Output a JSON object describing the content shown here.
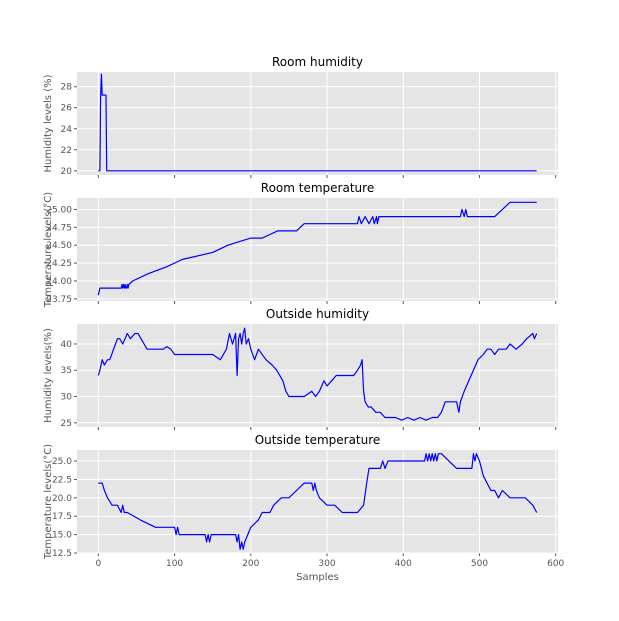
{
  "figure": {
    "xlabel": "Samples"
  },
  "colors": {
    "line": "#0000ff",
    "panel": "#e5e5e5",
    "grid": "#ffffff"
  },
  "chart_data": [
    {
      "type": "line",
      "title": "Room humidity",
      "ylabel": "Humidity levels (%)",
      "xlim": [
        -28,
        603
      ],
      "ylim": [
        19.6,
        29.4
      ],
      "yticks": [
        20,
        22,
        24,
        26,
        28
      ],
      "ytick_labels": [
        "20",
        "22",
        "24",
        "26",
        "28"
      ],
      "series": [
        {
          "x": [
            0,
            2,
            3,
            4,
            5,
            8,
            10,
            11,
            12,
            100,
            200,
            300,
            400,
            500,
            575
          ],
          "y": [
            20,
            20,
            27,
            29.2,
            27.2,
            27.2,
            27.2,
            20,
            20,
            20,
            20,
            20,
            20,
            20,
            20
          ]
        }
      ]
    },
    {
      "type": "line",
      "title": "Room temperature",
      "ylabel": "Temperature levels(°C)",
      "xlim": [
        -28,
        603
      ],
      "ylim": [
        23.72,
        25.16
      ],
      "yticks": [
        23.75,
        24.0,
        24.25,
        24.5,
        24.75,
        25.0
      ],
      "ytick_labels": [
        "23.75",
        "24.00",
        "24.25",
        "24.50",
        "24.75",
        "25.00"
      ],
      "series": [
        {
          "x": [
            0,
            2,
            30,
            31,
            32,
            33,
            34,
            35,
            36,
            37,
            38,
            39,
            40,
            45,
            65,
            90,
            110,
            150,
            170,
            200,
            215,
            225,
            235,
            260,
            270,
            300,
            340,
            342,
            345,
            350,
            355,
            360,
            362,
            365,
            366,
            368,
            370,
            400,
            445,
            475,
            477,
            480,
            482,
            484,
            490,
            520,
            530,
            540,
            575
          ],
          "y": [
            23.8,
            23.9,
            23.9,
            23.95,
            23.9,
            23.95,
            23.9,
            23.95,
            23.9,
            23.9,
            23.95,
            23.9,
            23.95,
            24.0,
            24.1,
            24.2,
            24.3,
            24.4,
            24.5,
            24.6,
            24.6,
            24.65,
            24.7,
            24.7,
            24.8,
            24.8,
            24.8,
            24.9,
            24.8,
            24.9,
            24.8,
            24.9,
            24.8,
            24.9,
            24.8,
            24.9,
            24.9,
            24.9,
            24.9,
            24.9,
            25.0,
            24.9,
            25.0,
            24.9,
            24.9,
            24.9,
            25.0,
            25.1,
            25.1
          ]
        }
      ]
    },
    {
      "type": "line",
      "title": "Outside humidity",
      "ylabel": "Humidity levels(%)",
      "xlim": [
        -28,
        603
      ],
      "ylim": [
        24.2,
        43.8
      ],
      "yticks": [
        25,
        30,
        35,
        40
      ],
      "ytick_labels": [
        "25",
        "30",
        "35",
        "40"
      ],
      "series": [
        {
          "x": [
            0,
            2,
            5,
            8,
            12,
            15,
            20,
            25,
            28,
            32,
            38,
            42,
            48,
            52,
            56,
            60,
            64,
            68,
            72,
            80,
            85,
            90,
            95,
            100,
            110,
            120,
            130,
            140,
            150,
            160,
            168,
            172,
            176,
            180,
            182,
            184,
            186,
            188,
            190,
            192,
            194,
            197,
            200,
            205,
            210,
            220,
            228,
            234,
            238,
            242,
            246,
            250,
            256,
            262,
            270,
            280,
            285,
            290,
            296,
            300,
            306,
            312,
            318,
            326,
            335,
            340,
            344,
            346,
            348,
            350,
            354,
            358,
            364,
            370,
            376,
            382,
            390,
            398,
            406,
            414,
            422,
            430,
            438,
            445,
            450,
            455,
            470,
            473,
            475,
            480,
            486,
            492,
            498,
            505,
            510,
            515,
            520,
            525,
            530,
            535,
            540,
            548,
            556,
            562,
            570,
            572,
            575
          ],
          "y": [
            34,
            35,
            37,
            36,
            37,
            37,
            39,
            41,
            41,
            40,
            42,
            41,
            42,
            42,
            41,
            40,
            39,
            39,
            39,
            39,
            39,
            39.5,
            39,
            38,
            38,
            38,
            38,
            38,
            38,
            37,
            39,
            42,
            40,
            42,
            34,
            41,
            42,
            40,
            42,
            43,
            40,
            41,
            39,
            37,
            39,
            37,
            36,
            35,
            34,
            33,
            31,
            30,
            30,
            30,
            30,
            31,
            30,
            31,
            33,
            32,
            33,
            34,
            34,
            34,
            34,
            35,
            36,
            37,
            31,
            29,
            28,
            28,
            27,
            27,
            26,
            26,
            26,
            25.5,
            26,
            25.5,
            26,
            25.5,
            26,
            26,
            27,
            29,
            29,
            27,
            29,
            31,
            33,
            35,
            37,
            38,
            39,
            39,
            38,
            39,
            39,
            39,
            40,
            39,
            40,
            41,
            42,
            41,
            42
          ]
        }
      ]
    },
    {
      "type": "line",
      "title": "Outside temperature",
      "ylabel": "Temperature levels(°C)",
      "xlim": [
        -28,
        603
      ],
      "ylim": [
        12.5,
        26.5
      ],
      "yticks": [
        12.5,
        15.0,
        17.5,
        20.0,
        22.5,
        25.0
      ],
      "ytick_labels": [
        "12.5",
        "15.0",
        "17.5",
        "20.0",
        "22.5",
        "25.0"
      ],
      "series": [
        {
          "x": [
            0,
            5,
            8,
            12,
            18,
            25,
            30,
            32,
            34,
            38,
            55,
            75,
            100,
            102,
            104,
            106,
            108,
            140,
            142,
            144,
            146,
            148,
            150,
            180,
            182,
            184,
            186,
            188,
            190,
            192,
            196,
            200,
            210,
            215,
            225,
            230,
            240,
            250,
            260,
            270,
            280,
            282,
            284,
            286,
            290,
            300,
            310,
            320,
            340,
            348,
            352,
            355,
            360,
            370,
            373,
            376,
            380,
            390,
            400,
            420,
            428,
            430,
            432,
            434,
            436,
            438,
            440,
            442,
            444,
            446,
            448,
            450,
            470,
            490,
            492,
            494,
            496,
            500,
            505,
            510,
            515,
            520,
            525,
            530,
            540,
            560,
            570,
            575
          ],
          "y": [
            22,
            22,
            21,
            20,
            19,
            19,
            18,
            19,
            18,
            18,
            17,
            16,
            16,
            15,
            16,
            15,
            15,
            15,
            14,
            15,
            14,
            15,
            15,
            15,
            14,
            15,
            13,
            14,
            13,
            14,
            15,
            16,
            17,
            18,
            18,
            19,
            20,
            20,
            21,
            22,
            22,
            21,
            22,
            21,
            20,
            19,
            19,
            18,
            18,
            19,
            22,
            24,
            24,
            24,
            25,
            24,
            25,
            25,
            25,
            25,
            25,
            26,
            25,
            26,
            25,
            26,
            25,
            26,
            25,
            26,
            26,
            26,
            24,
            24,
            26,
            25,
            26,
            25,
            23,
            22,
            21,
            21,
            20,
            21,
            20,
            20,
            19,
            18
          ]
        }
      ]
    }
  ]
}
